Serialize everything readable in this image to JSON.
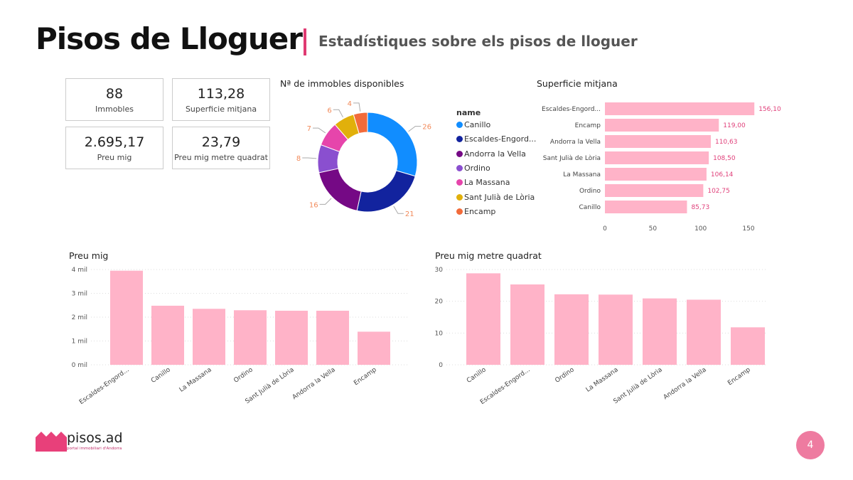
{
  "header": {
    "title": "Pisos de Lloguer",
    "subtitle": "Estadístiques sobre els pisos de lloguer"
  },
  "cards": [
    {
      "value": "88",
      "label": "Immobles"
    },
    {
      "value": "113,28",
      "label": "Superficie mitjana"
    },
    {
      "value": "2.695,17",
      "label": "Preu mig"
    },
    {
      "value": "23,79",
      "label": "Preu mig metre quadrat"
    }
  ],
  "accent": "#e03a72",
  "chart_data": [
    {
      "type": "pie",
      "title": "Nª de immobles disponibles",
      "legend_title": "name",
      "legend_placement": "right",
      "categories": [
        "Canillo",
        "Escaldes-Engord...",
        "Andorra la Vella",
        "Ordino",
        "La Massana",
        "Sant Julià de Lòria",
        "Encamp"
      ],
      "values": [
        26,
        21,
        16,
        8,
        7,
        6,
        4
      ],
      "colors": [
        "#118dff",
        "#12239e",
        "#750985",
        "#8a4fcf",
        "#e645ab",
        "#e1b00b",
        "#f26b3a"
      ]
    },
    {
      "type": "bar",
      "orientation": "horizontal",
      "title": "Superficie mitjana",
      "categories": [
        "Escaldes-Engord...",
        "Encamp",
        "Andorra la Vella",
        "Sant Julià de Lòria",
        "La Massana",
        "Ordino",
        "Canillo"
      ],
      "values": [
        156.1,
        119.0,
        110.63,
        108.5,
        106.14,
        102.75,
        85.73
      ],
      "data_labels": [
        "156,10",
        "119,00",
        "110,63",
        "108,50",
        "106,14",
        "102,75",
        "85,73"
      ],
      "xlim": [
        0,
        150
      ],
      "xticks": [
        "0",
        "50",
        "100",
        "150"
      ],
      "color": "#ffb3c8"
    },
    {
      "type": "bar",
      "title": "Preu mig",
      "categories": [
        "Escaldes-Engord...",
        "Canillo",
        "La Massana",
        "Ordino",
        "Sant Julià de Lòria",
        "Andorra la Vella",
        "Encamp"
      ],
      "values": [
        3950,
        2480,
        2350,
        2290,
        2270,
        2270,
        1390
      ],
      "ylim": [
        0,
        4000
      ],
      "yticks": [
        "0 mil",
        "1 mil",
        "2 mil",
        "3 mil",
        "4 mil"
      ],
      "grid": true,
      "color": "#ffb3c8"
    },
    {
      "type": "bar",
      "title": "Preu mig metre quadrat",
      "categories": [
        "Canillo",
        "Escaldes-Engord...",
        "Ordino",
        "La Massana",
        "Sant Julià de Lòria",
        "Andorra la Vella",
        "Encamp"
      ],
      "values": [
        28.8,
        25.3,
        22.2,
        22.1,
        20.9,
        20.5,
        11.8
      ],
      "ylim": [
        0,
        30
      ],
      "yticks": [
        "0",
        "10",
        "20",
        "30"
      ],
      "grid": true,
      "color": "#ffb3c8"
    }
  ],
  "logo": {
    "name": "pisos.ad",
    "tagline": "portal immobiliari d'Andorra"
  },
  "page_number": "4"
}
